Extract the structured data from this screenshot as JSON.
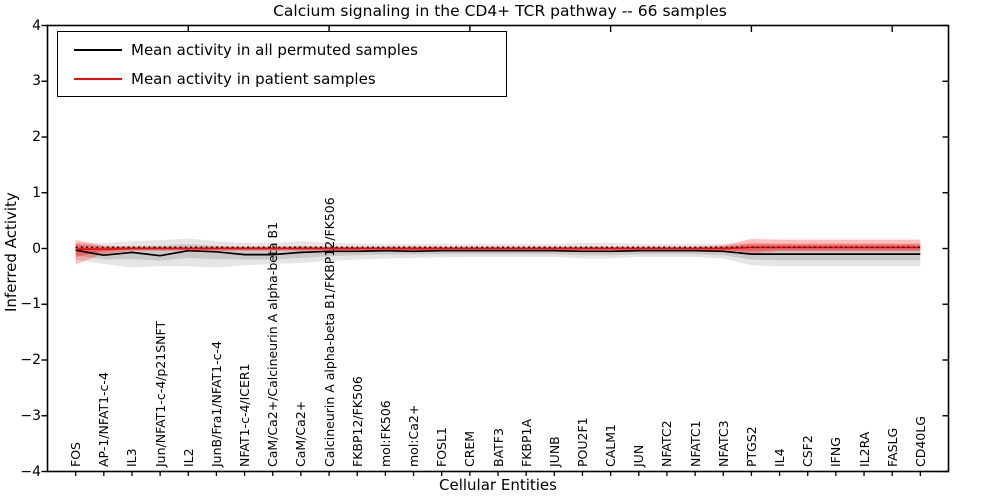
{
  "chart_data": {
    "type": "line",
    "title": "Calcium signaling in the CD4+ TCR pathway -- 66 samples",
    "xlabel": "Cellular Entities",
    "ylabel": "Inferred Activity",
    "ylim": [
      -4,
      4
    ],
    "xlim_slots": 32,
    "grid": false,
    "legend_position": "upper left",
    "yticks": [
      4,
      3,
      2,
      1,
      0,
      -1,
      -2,
      -3,
      -4
    ],
    "ytick_labels": [
      "4",
      "3",
      "2",
      "1",
      "0",
      "−1",
      "−2",
      "−3",
      "−4"
    ],
    "x_major_ticks": [
      5,
      10,
      15,
      20,
      25,
      30
    ],
    "categories": [
      "FOS",
      "AP-1/NFAT1-c-4",
      "IL3",
      "Jun/NFAT1-c-4/p21SNFT",
      "IL2",
      "JunB/Fra1/NFAT1-c-4",
      "NFAT1-c-4/ICER1",
      "CaM/Ca2+/Calcineurin A alpha-beta B1",
      "CaM/Ca2+",
      "Calcineurin A alpha-beta B1/FKBP12/FK506",
      "FKBP12/FK506",
      "mol:FK506",
      "mol:Ca2+",
      "FOSL1",
      "CREM",
      "BATF3",
      "FKBP1A",
      "JUNB",
      "POU2F1",
      "CALM1",
      "JUN",
      "NFATC2",
      "NFATC1",
      "NFATC3",
      "PTGS2",
      "IL4",
      "CSF2",
      "IFNG",
      "IL2RA",
      "FASLG",
      "CD40LG"
    ],
    "zero_line": {
      "value": 0,
      "style": "dotted",
      "color": "#000000"
    },
    "series": [
      {
        "name": "Mean activity in all permuted samples",
        "color": "#000000",
        "band_color": "#000000",
        "band_outer_opacity": 0.1,
        "band_inner_opacity": 0.12,
        "values": [
          -0.03,
          -0.12,
          -0.07,
          -0.13,
          -0.04,
          -0.06,
          -0.11,
          -0.11,
          -0.07,
          -0.05,
          -0.05,
          -0.04,
          -0.05,
          -0.04,
          -0.04,
          -0.04,
          -0.04,
          -0.04,
          -0.05,
          -0.05,
          -0.04,
          -0.04,
          -0.04,
          -0.05,
          -0.1,
          -0.1,
          -0.1,
          -0.1,
          -0.1,
          -0.1,
          -0.1
        ],
        "band_outer": {
          "upper": [
            0.1,
            0.1,
            0.13,
            0.15,
            0.18,
            0.13,
            0.1,
            0.1,
            0.13,
            0.1,
            0.09,
            0.08,
            0.08,
            0.09,
            0.08,
            0.08,
            0.08,
            0.08,
            0.1,
            0.1,
            0.08,
            0.08,
            0.08,
            0.08,
            0.09,
            0.09,
            0.09,
            0.09,
            0.09,
            0.09,
            0.09
          ],
          "lower": [
            -0.2,
            -0.28,
            -0.34,
            -0.32,
            -0.32,
            -0.34,
            -0.3,
            -0.28,
            -0.26,
            -0.22,
            -0.2,
            -0.18,
            -0.17,
            -0.16,
            -0.15,
            -0.15,
            -0.15,
            -0.15,
            -0.18,
            -0.18,
            -0.15,
            -0.15,
            -0.15,
            -0.18,
            -0.3,
            -0.32,
            -0.32,
            -0.32,
            -0.32,
            -0.32,
            -0.32
          ]
        },
        "band_inner": {
          "upper": [
            0.04,
            0.02,
            0.05,
            0.05,
            0.08,
            0.05,
            0.03,
            0.03,
            0.05,
            0.03,
            0.02,
            0.02,
            0.02,
            0.02,
            0.02,
            0.02,
            0.02,
            0.02,
            0.03,
            0.03,
            0.02,
            0.02,
            0.02,
            0.02,
            0.0,
            0.0,
            0.0,
            0.0,
            0.0,
            0.0,
            0.0
          ],
          "lower": [
            -0.12,
            -0.2,
            -0.19,
            -0.22,
            -0.17,
            -0.19,
            -0.2,
            -0.2,
            -0.17,
            -0.14,
            -0.12,
            -0.11,
            -0.11,
            -0.1,
            -0.1,
            -0.1,
            -0.1,
            -0.1,
            -0.12,
            -0.12,
            -0.1,
            -0.1,
            -0.1,
            -0.12,
            -0.2,
            -0.21,
            -0.21,
            -0.21,
            -0.21,
            -0.21,
            -0.21
          ]
        }
      },
      {
        "name": "Mean activity in patient samples",
        "color": "#ff0000",
        "band_color": "#ff0000",
        "band_outer_opacity": 0.25,
        "band_inner_opacity": 0.32,
        "values": [
          -0.01,
          -0.01,
          0.0,
          0.0,
          0.0,
          0.0,
          0.0,
          0.0,
          0.0,
          0.0,
          0.0,
          0.0,
          0.0,
          0.0,
          0.0,
          0.0,
          0.0,
          0.0,
          0.0,
          0.0,
          0.0,
          0.0,
          0.0,
          0.0,
          0.02,
          0.02,
          0.02,
          0.02,
          0.02,
          0.02,
          0.02
        ],
        "band_outer": {
          "upper": [
            0.15,
            0.05,
            0.03,
            0.03,
            0.03,
            0.03,
            0.03,
            0.03,
            0.03,
            0.03,
            0.03,
            0.03,
            0.04,
            0.03,
            0.03,
            0.03,
            0.03,
            0.03,
            0.03,
            0.03,
            0.03,
            0.03,
            0.03,
            0.06,
            0.17,
            0.16,
            0.16,
            0.16,
            0.16,
            0.16,
            0.16
          ],
          "lower": [
            -0.28,
            -0.1,
            -0.04,
            -0.04,
            -0.04,
            -0.04,
            -0.04,
            -0.04,
            -0.04,
            -0.04,
            -0.04,
            -0.04,
            -0.05,
            -0.04,
            -0.04,
            -0.04,
            -0.04,
            -0.04,
            -0.04,
            -0.04,
            -0.04,
            -0.04,
            -0.04,
            -0.06,
            -0.09,
            -0.05,
            -0.05,
            -0.05,
            -0.05,
            -0.05,
            -0.05
          ]
        },
        "band_inner": {
          "upper": [
            0.08,
            0.03,
            0.02,
            0.02,
            0.02,
            0.02,
            0.02,
            0.02,
            0.02,
            0.02,
            0.02,
            0.02,
            0.02,
            0.02,
            0.02,
            0.02,
            0.02,
            0.02,
            0.02,
            0.02,
            0.02,
            0.02,
            0.02,
            0.03,
            0.09,
            0.08,
            0.08,
            0.08,
            0.08,
            0.08,
            0.08
          ],
          "lower": [
            -0.15,
            -0.05,
            -0.02,
            -0.02,
            -0.02,
            -0.02,
            -0.02,
            -0.02,
            -0.02,
            -0.02,
            -0.02,
            -0.02,
            -0.03,
            -0.02,
            -0.02,
            -0.02,
            -0.02,
            -0.02,
            -0.02,
            -0.02,
            -0.02,
            -0.02,
            -0.02,
            -0.03,
            -0.05,
            -0.03,
            -0.03,
            -0.03,
            -0.03,
            -0.03,
            -0.03
          ]
        }
      }
    ]
  }
}
